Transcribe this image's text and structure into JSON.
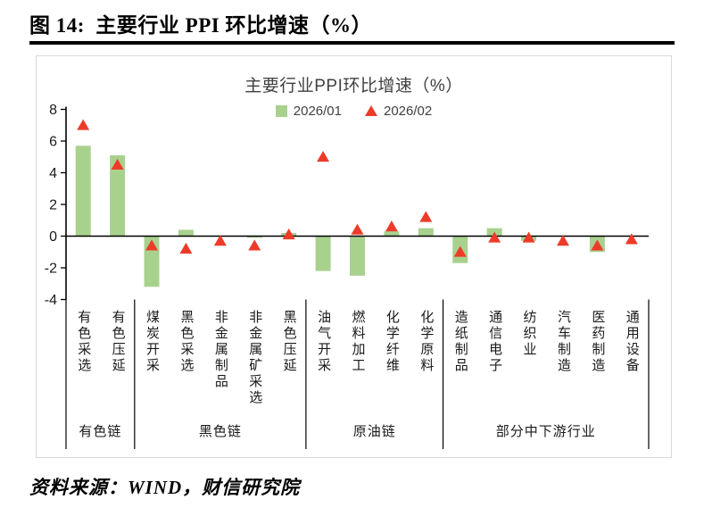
{
  "header": {
    "title": "图 14:  主要行业 PPI 环比增速（%）"
  },
  "footer": {
    "source": "资料来源：WIND，财信研究院"
  },
  "colors": {
    "bar_green": "#A9D18E",
    "marker_red": "#ED3B2A",
    "title_gray": "#404040",
    "rule_black": "#000000",
    "frame_border": "#D9D9D9"
  },
  "chart_data": {
    "type": "bar",
    "title": "主要行业PPI环比增速（%）",
    "categories": [
      "有色采选",
      "有色压延",
      "煤炭开采",
      "黑色采选",
      "非金属制品",
      "非金属矿采选",
      "黑色压延",
      "油气开采",
      "燃料加工",
      "化学纤维",
      "化学原料",
      "造纸制品",
      "通信电子",
      "纺织业",
      "汽车制造",
      "医药制造",
      "通用设备"
    ],
    "series": [
      {
        "name": "2026/01",
        "type": "bar",
        "marker": "square",
        "color": "#A9D18E",
        "values": [
          5.7,
          5.1,
          -3.2,
          0.4,
          0,
          -0.1,
          0.2,
          -2.2,
          -2.5,
          0.3,
          0.5,
          -1.7,
          0.5,
          -0.3,
          0,
          -1.0,
          0
        ]
      },
      {
        "name": "2026/02",
        "type": "scatter",
        "marker": "triangle",
        "color": "#ED3B2A",
        "values": [
          7.0,
          4.5,
          -0.6,
          -0.8,
          -0.3,
          -0.6,
          0.1,
          5.0,
          0.4,
          0.6,
          1.2,
          -1.0,
          -0.1,
          -0.1,
          -0.3,
          -0.6,
          -0.2
        ]
      }
    ],
    "groups": [
      {
        "label": "有色链",
        "from": 0,
        "to": 2
      },
      {
        "label": "黑色链",
        "from": 2,
        "to": 7
      },
      {
        "label": "原油链",
        "from": 7,
        "to": 11
      },
      {
        "label": "部分中下游行业",
        "from": 11,
        "to": 17
      }
    ],
    "ylim": [
      -4,
      8
    ],
    "yticks": [
      8,
      6,
      4,
      2,
      0,
      -2,
      -4
    ],
    "xlabel": "",
    "ylabel": "",
    "grid": false,
    "legend_position": "top"
  }
}
